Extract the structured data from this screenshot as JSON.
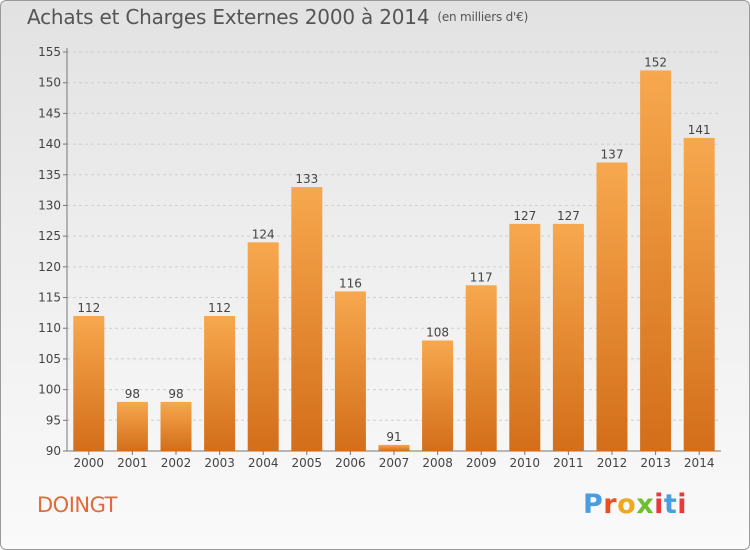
{
  "header": {
    "title": "Achats et Charges Externes 2000 à 2014",
    "subtitle": "(en milliers d'€)"
  },
  "footer": {
    "commune": "DOINGT",
    "logo_letters": [
      "P",
      "r",
      "o",
      "x",
      "i",
      "t",
      "i"
    ],
    "logo_colors": [
      "#4a9ee0",
      "#e8501e",
      "#f0a820",
      "#6cbf2e",
      "#e83a3a",
      "#4a9ee0",
      "#e83a3a"
    ]
  },
  "chart_data": {
    "type": "bar",
    "categories": [
      "2000",
      "2001",
      "2002",
      "2003",
      "2004",
      "2005",
      "2006",
      "2007",
      "2008",
      "2009",
      "2010",
      "2011",
      "2012",
      "2013",
      "2014"
    ],
    "values": [
      112,
      98,
      98,
      112,
      124,
      133,
      116,
      91,
      108,
      117,
      127,
      127,
      137,
      152,
      141
    ],
    "ylim": [
      90,
      155
    ],
    "yticks": [
      90,
      95,
      100,
      105,
      110,
      115,
      120,
      125,
      130,
      135,
      140,
      145,
      150,
      155
    ],
    "grid": true,
    "bar_color_light": "#f7a84e",
    "bar_color_dark": "#d36e1a"
  }
}
